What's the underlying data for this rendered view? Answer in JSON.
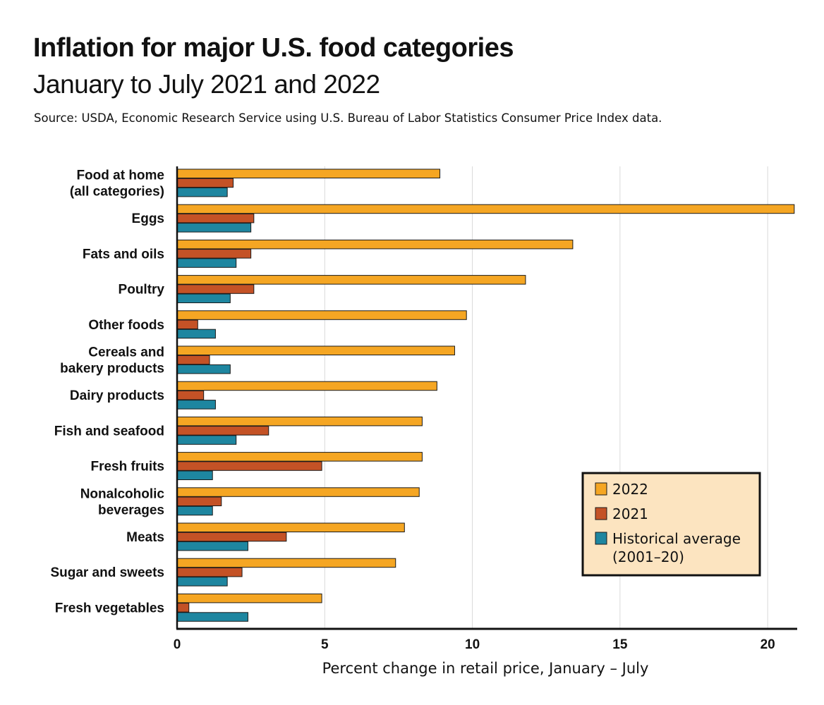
{
  "title": "Inflation for major U.S. food categories",
  "subtitle": "January to July 2021 and 2022",
  "source": "Source: USDA, Economic Research Service using U.S. Bureau of Labor Statistics Consumer Price Index data.",
  "colors": {
    "series_2022": "#F5A623",
    "series_2021": "#C45226",
    "series_hist": "#1E86A0",
    "legend_bg": "#FCE4C0",
    "grid": "#d9d9d9"
  },
  "chart_data": {
    "type": "bar",
    "orientation": "horizontal",
    "categories": [
      [
        "Food at home",
        "(all categories)"
      ],
      [
        "Eggs"
      ],
      [
        "Fats and oils"
      ],
      [
        "Poultry"
      ],
      [
        "Other foods"
      ],
      [
        "Cereals and",
        "bakery products"
      ],
      [
        "Dairy products"
      ],
      [
        "Fish and seafood"
      ],
      [
        "Fresh fruits"
      ],
      [
        "Nonalcoholic",
        "beverages"
      ],
      [
        "Meats"
      ],
      [
        "Sugar and sweets"
      ],
      [
        "Fresh vegetables"
      ]
    ],
    "series": [
      {
        "name": "2022",
        "values": [
          8.9,
          20.9,
          13.4,
          11.8,
          9.8,
          9.4,
          8.8,
          8.3,
          8.3,
          8.2,
          7.7,
          7.4,
          4.9
        ]
      },
      {
        "name": "2021",
        "values": [
          1.9,
          2.6,
          2.5,
          2.6,
          0.7,
          1.1,
          0.9,
          3.1,
          4.9,
          1.5,
          3.7,
          2.2,
          0.4
        ]
      },
      {
        "name": [
          "Historical average",
          "(2001–20)"
        ],
        "values": [
          1.7,
          2.5,
          2.0,
          1.8,
          1.3,
          1.8,
          1.3,
          2.0,
          1.2,
          1.2,
          2.4,
          1.7,
          2.4
        ]
      }
    ],
    "xlabel": "Percent change in retail price, January – July",
    "ylabel": "",
    "xlim": [
      0,
      21
    ],
    "xticks": [
      0,
      5,
      10,
      15,
      20
    ],
    "grid": true,
    "legend_position": "bottom-right"
  }
}
